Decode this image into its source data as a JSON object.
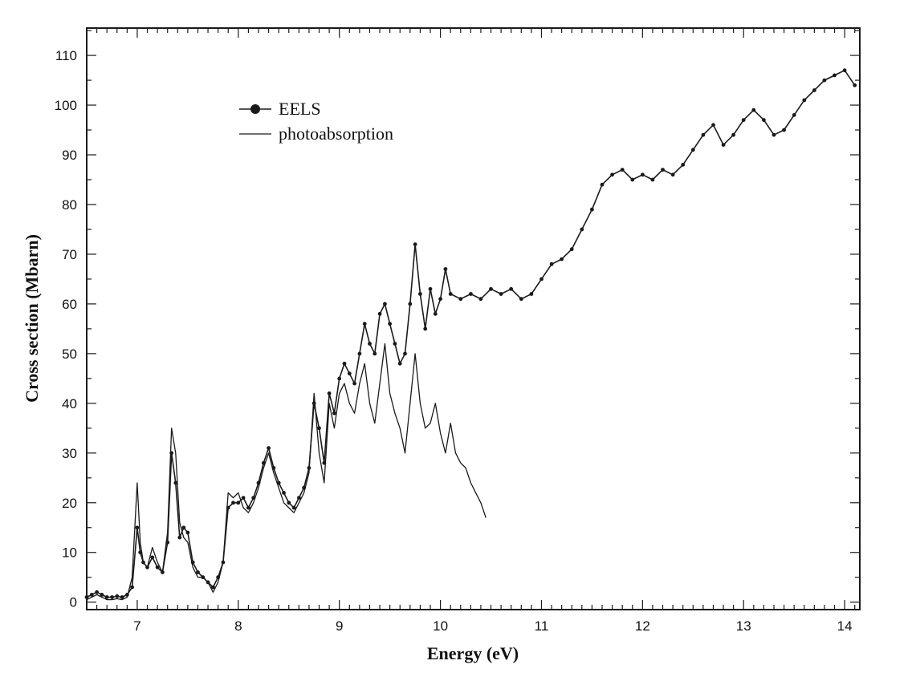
{
  "colors": {
    "line": "#1a1a1a",
    "frame": "#1a1a1a",
    "background": "#ffffff"
  },
  "chart_data": {
    "type": "line",
    "title": "",
    "xlabel": "Energy (eV)",
    "ylabel": "Cross section (Mbarn)",
    "xlim": [
      6.5,
      14.15
    ],
    "ylim": [
      -1.5,
      115.5
    ],
    "xticks": [
      7,
      8,
      9,
      10,
      11,
      12,
      13,
      14
    ],
    "yticks": [
      0,
      10,
      20,
      30,
      40,
      50,
      60,
      70,
      80,
      90,
      100,
      110
    ],
    "grid": false,
    "legend_position": "upper-left",
    "series": [
      {
        "name": "EELS",
        "style": "line-with-dots",
        "x": [
          6.5,
          6.55,
          6.6,
          6.65,
          6.7,
          6.75,
          6.8,
          6.85,
          6.9,
          6.95,
          7.0,
          7.03,
          7.06,
          7.1,
          7.15,
          7.2,
          7.25,
          7.3,
          7.34,
          7.38,
          7.42,
          7.46,
          7.5,
          7.55,
          7.6,
          7.65,
          7.7,
          7.75,
          7.8,
          7.85,
          7.9,
          7.95,
          8.0,
          8.05,
          8.1,
          8.15,
          8.2,
          8.25,
          8.3,
          8.35,
          8.4,
          8.45,
          8.5,
          8.55,
          8.6,
          8.65,
          8.7,
          8.75,
          8.8,
          8.85,
          8.9,
          8.95,
          9.0,
          9.05,
          9.1,
          9.15,
          9.2,
          9.25,
          9.3,
          9.35,
          9.4,
          9.45,
          9.5,
          9.55,
          9.6,
          9.65,
          9.7,
          9.75,
          9.8,
          9.85,
          9.9,
          9.95,
          10.0,
          10.05,
          10.1,
          10.2,
          10.3,
          10.4,
          10.5,
          10.6,
          10.7,
          10.8,
          10.9,
          11.0,
          11.1,
          11.2,
          11.3,
          11.4,
          11.5,
          11.6,
          11.7,
          11.8,
          11.9,
          12.0,
          12.1,
          12.2,
          12.3,
          12.4,
          12.5,
          12.6,
          12.7,
          12.8,
          12.9,
          13.0,
          13.1,
          13.2,
          13.3,
          13.4,
          13.5,
          13.6,
          13.7,
          13.8,
          13.9,
          14.0,
          14.1
        ],
        "y": [
          1,
          1.5,
          2,
          1.5,
          1,
          1,
          1.2,
          1,
          1.5,
          3,
          15,
          10,
          8,
          7,
          9,
          7,
          6,
          12,
          30,
          24,
          13,
          15,
          14,
          8,
          6,
          5,
          4,
          3,
          5,
          8,
          19,
          20,
          20,
          21,
          19,
          21,
          24,
          28,
          31,
          27,
          24,
          22,
          20,
          19,
          21,
          23,
          27,
          40,
          35,
          28,
          42,
          38,
          45,
          48,
          46,
          44,
          50,
          56,
          52,
          50,
          58,
          60,
          56,
          52,
          48,
          50,
          60,
          72,
          62,
          55,
          63,
          58,
          61,
          67,
          62,
          61,
          62,
          61,
          63,
          62,
          63,
          61,
          62,
          65,
          68,
          69,
          71,
          75,
          79,
          84,
          86,
          87,
          85,
          86,
          85,
          87,
          86,
          88,
          91,
          94,
          96,
          92,
          94,
          97,
          99,
          97,
          94,
          95,
          98,
          101,
          103,
          105,
          106,
          107,
          104
        ]
      },
      {
        "name": "photoabsorption",
        "style": "line",
        "x": [
          6.5,
          6.55,
          6.6,
          6.65,
          6.7,
          6.75,
          6.8,
          6.85,
          6.9,
          6.95,
          7.0,
          7.03,
          7.06,
          7.1,
          7.15,
          7.2,
          7.25,
          7.3,
          7.34,
          7.38,
          7.42,
          7.46,
          7.5,
          7.55,
          7.6,
          7.65,
          7.7,
          7.75,
          7.8,
          7.85,
          7.9,
          7.95,
          8.0,
          8.05,
          8.1,
          8.15,
          8.2,
          8.25,
          8.3,
          8.35,
          8.4,
          8.45,
          8.5,
          8.55,
          8.6,
          8.65,
          8.7,
          8.75,
          8.8,
          8.85,
          8.9,
          8.95,
          9.0,
          9.05,
          9.1,
          9.15,
          9.2,
          9.25,
          9.3,
          9.35,
          9.4,
          9.45,
          9.5,
          9.55,
          9.6,
          9.65,
          9.7,
          9.75,
          9.8,
          9.85,
          9.9,
          9.95,
          10.0,
          10.05,
          10.1,
          10.15,
          10.2,
          10.25,
          10.3,
          10.35,
          10.4,
          10.45
        ],
        "y": [
          0.5,
          1,
          1.5,
          1,
          0.5,
          0.5,
          0.7,
          0.5,
          1,
          5,
          24,
          12,
          8,
          7,
          11,
          8,
          6,
          14,
          35,
          30,
          16,
          13,
          12,
          7,
          5,
          5,
          4,
          2,
          4,
          8,
          22,
          21,
          22,
          19,
          18,
          20,
          23,
          27,
          30,
          26,
          23,
          20,
          19,
          18,
          20,
          22,
          26,
          42,
          30,
          24,
          40,
          35,
          42,
          44,
          40,
          38,
          44,
          48,
          40,
          36,
          44,
          52,
          42,
          38,
          35,
          30,
          40,
          50,
          40,
          35,
          36,
          40,
          34,
          30,
          36,
          30,
          28,
          27,
          24,
          22,
          20,
          17
        ]
      }
    ]
  }
}
